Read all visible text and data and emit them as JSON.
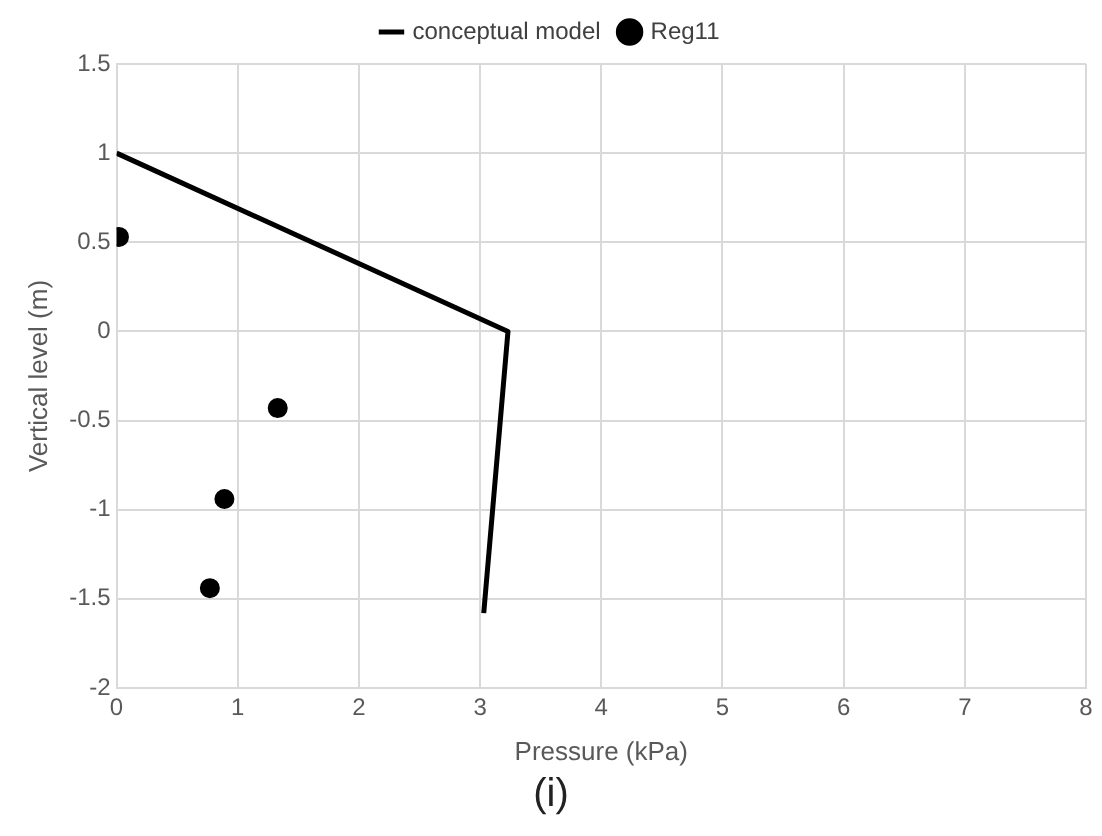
{
  "chart_data": {
    "type": "scatter",
    "xlabel": "Pressure (kPa)",
    "ylabel": "Vertical level (m)",
    "annotations": [
      "(i)"
    ],
    "xlim": [
      0,
      8
    ],
    "xticks": [
      0,
      1,
      2,
      3,
      4,
      5,
      6,
      7,
      8
    ],
    "ylim": [
      -2,
      1.5
    ],
    "yticks": [
      -2,
      -1.5,
      -1,
      -0.5,
      0,
      0.5,
      1,
      1.5
    ],
    "grid": true,
    "legend": "top",
    "series": [
      {
        "name": "conceptual model",
        "type": "line",
        "color": "#000000",
        "marker": "none",
        "line_style": "solid",
        "x": [
          0,
          3.23,
          3.03
        ],
        "values": [
          1,
          0,
          -1.58
        ]
      },
      {
        "name": "Reg11",
        "type": "scatter",
        "color": "#000000",
        "marker": "circle",
        "x": [
          0.02,
          1.33,
          0.89,
          0.77
        ],
        "values": [
          0.53,
          -0.43,
          -0.94,
          -1.44
        ]
      }
    ]
  }
}
